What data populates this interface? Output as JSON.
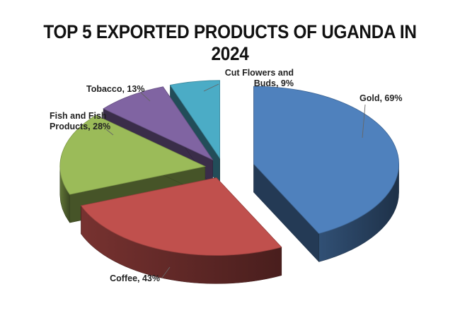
{
  "chart_data": {
    "type": "pie",
    "title": "TOP 5 EXPORTED PRODUCTS OF UGANDA IN 2024",
    "categories": [
      "Gold",
      "Coffee",
      "Fish and Fish Products",
      "Tobacco",
      "Cut Flowers and Buds"
    ],
    "values": [
      69,
      43,
      28,
      13,
      9
    ],
    "data_labels": [
      "Gold, 69%",
      "Coffee, 43%",
      "Fish and Fish Products, 28%",
      "Tobacco, 13%",
      "Cut Flowers and Buds, 9%"
    ],
    "legend": false,
    "style": "3d-exploded",
    "colors": [
      "#4F81BD",
      "#C0504D",
      "#9BBB59",
      "#8064A2",
      "#4BACC6"
    ]
  }
}
